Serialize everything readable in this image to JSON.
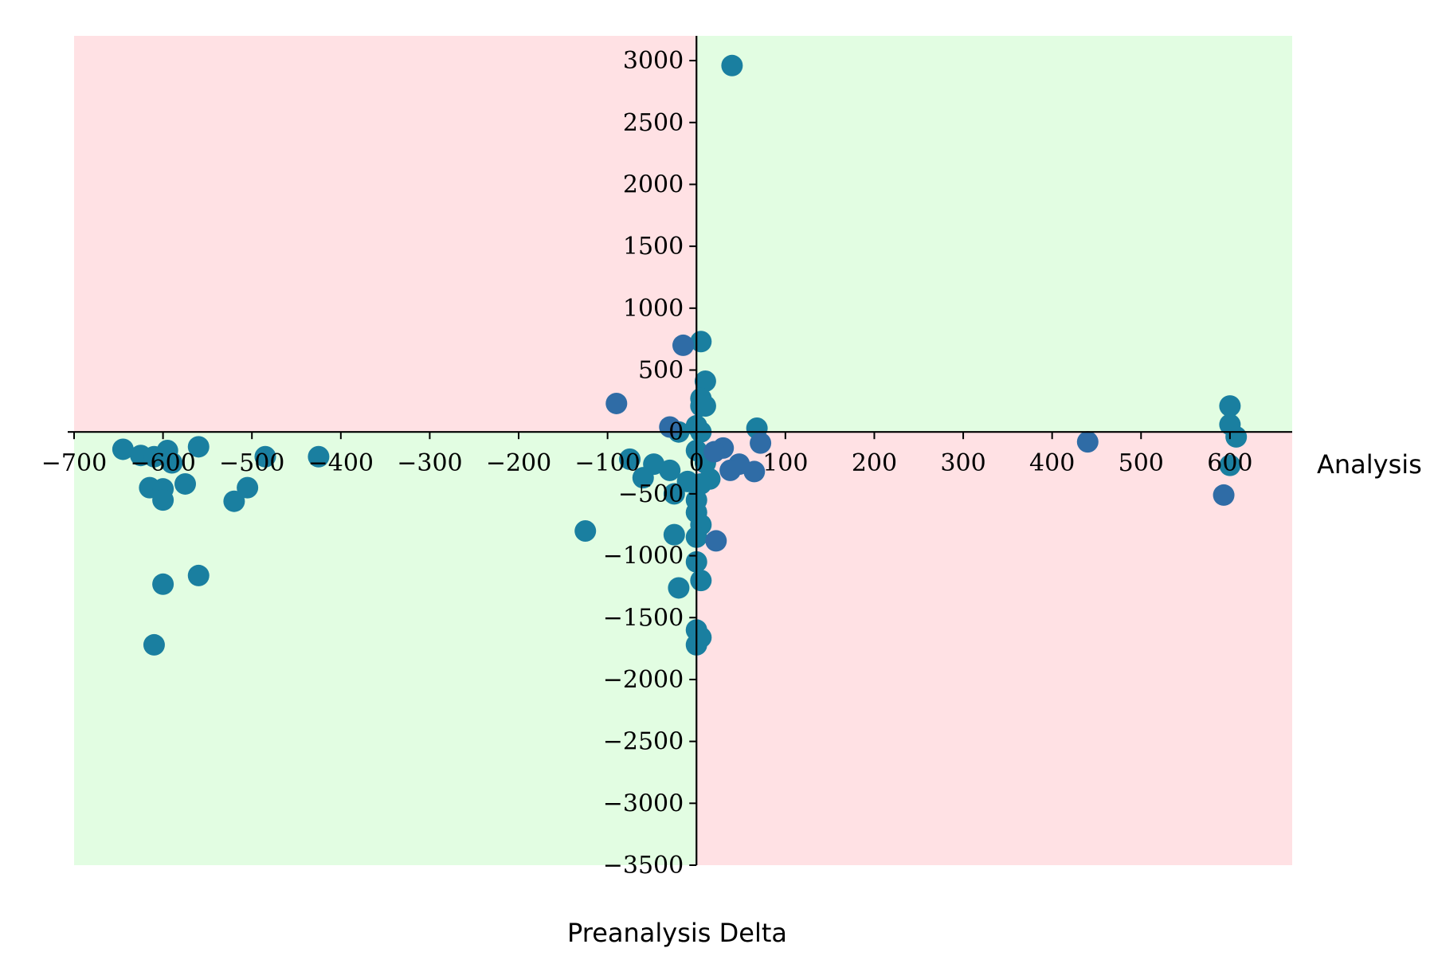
{
  "chart_data": {
    "type": "scatter",
    "title": "",
    "xlabel": "Analysis",
    "ylabel": "Preanalysis Delta",
    "xlim": [
      -700,
      670
    ],
    "ylim": [
      -3500,
      3200
    ],
    "xticks": [
      -700,
      -600,
      -500,
      -400,
      -300,
      -200,
      -100,
      0,
      100,
      200,
      300,
      400,
      500,
      600
    ],
    "yticks": [
      -3500,
      -3000,
      -2500,
      -2000,
      -1500,
      -1000,
      -500,
      0,
      500,
      1000,
      1500,
      2000,
      2500,
      3000
    ],
    "grid": false,
    "quadrant_colors": {
      "positive_agreement": "#e2fde2",
      "negative_agreement": "#ffe1e4"
    },
    "series": [
      {
        "color": "#1a7fa0",
        "points": [
          [
            40,
            2960
          ],
          [
            5,
            730
          ],
          [
            10,
            410
          ],
          [
            5,
            270
          ],
          [
            10,
            210
          ],
          [
            5,
            210
          ],
          [
            0,
            50
          ],
          [
            -20,
            0
          ],
          [
            5,
            0
          ],
          [
            68,
            30
          ],
          [
            0,
            -150
          ],
          [
            10,
            -250
          ],
          [
            15,
            -380
          ],
          [
            5,
            -420
          ],
          [
            0,
            -550
          ],
          [
            -10,
            -400
          ],
          [
            -25,
            -500
          ],
          [
            -30,
            -310
          ],
          [
            0,
            -650
          ],
          [
            5,
            -750
          ],
          [
            0,
            -850
          ],
          [
            -25,
            -830
          ],
          [
            0,
            -1050
          ],
          [
            5,
            -1200
          ],
          [
            -20,
            -1260
          ],
          [
            0,
            -1600
          ],
          [
            5,
            -1660
          ],
          [
            0,
            -1720
          ],
          [
            -48,
            -260
          ],
          [
            -60,
            -370
          ],
          [
            -75,
            -220
          ],
          [
            -125,
            -800
          ],
          [
            -645,
            -140
          ],
          [
            -625,
            -190
          ],
          [
            -595,
            -150
          ],
          [
            -610,
            -200
          ],
          [
            -560,
            -120
          ],
          [
            -590,
            -250
          ],
          [
            -520,
            -560
          ],
          [
            -505,
            -450
          ],
          [
            -485,
            -200
          ],
          [
            -425,
            -200
          ],
          [
            -615,
            -450
          ],
          [
            -600,
            -460
          ],
          [
            -600,
            -550
          ],
          [
            -575,
            -420
          ],
          [
            -600,
            -1230
          ],
          [
            -560,
            -1160
          ],
          [
            -610,
            -1720
          ],
          [
            600,
            210
          ],
          [
            600,
            60
          ],
          [
            607,
            -40
          ],
          [
            600,
            -270
          ]
        ]
      },
      {
        "color": "#2f6ca6",
        "points": [
          [
            -90,
            230
          ],
          [
            -15,
            700
          ],
          [
            -30,
            40
          ],
          [
            30,
            -130
          ],
          [
            20,
            -160
          ],
          [
            72,
            -90
          ],
          [
            48,
            -260
          ],
          [
            38,
            -310
          ],
          [
            65,
            -320
          ],
          [
            22,
            -880
          ],
          [
            440,
            -80
          ],
          [
            593,
            -510
          ]
        ]
      }
    ]
  }
}
